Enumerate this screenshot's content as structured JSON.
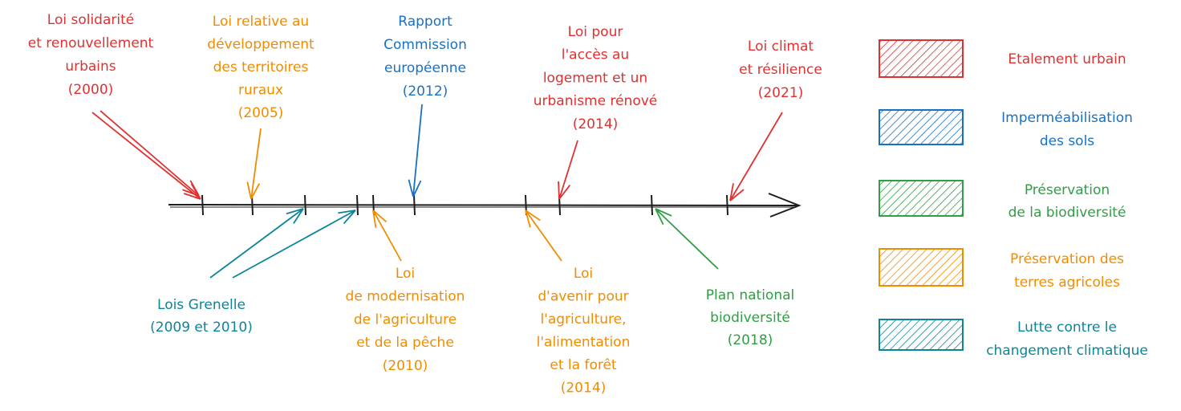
{
  "events": [
    {
      "lines": [
        "Loi solidarité",
        "et renouvellement",
        "urbains",
        "(2000)"
      ],
      "color": "#e03131"
    },
    {
      "lines": [
        "Loi relative au",
        "développement",
        "des territoires",
        "ruraux",
        "(2005)"
      ],
      "color": "#f08c00"
    },
    {
      "lines": [
        "Rapport",
        "Commission",
        "européenne",
        "(2012)"
      ],
      "color": "#1971c2"
    },
    {
      "lines": [
        "Loi pour",
        "l'accès au",
        "logement et un",
        "urbanisme rénové",
        "(2014)"
      ],
      "color": "#e03131"
    },
    {
      "lines": [
        "Loi climat",
        "et résilience",
        "(2021)"
      ],
      "color": "#e03131"
    },
    {
      "lines": [
        "Lois Grenelle",
        "(2009 et 2010)"
      ],
      "color": "#0c8599"
    },
    {
      "lines": [
        "Loi",
        "de modernisation",
        "de l'agriculture",
        "et de la pêche",
        "(2010)"
      ],
      "color": "#f08c00"
    },
    {
      "lines": [
        "Loi",
        "d'avenir pour",
        "l'agriculture,",
        "l'alimentation",
        "et la forêt",
        "(2014)"
      ],
      "color": "#f08c00"
    },
    {
      "lines": [
        "Plan national",
        "biodiversité",
        "(2018)"
      ],
      "color": "#2f9e44"
    }
  ],
  "legend": [
    {
      "lines": [
        "Etalement urbain"
      ],
      "color": "#e03131"
    },
    {
      "lines": [
        "Imperméabilisation",
        "des sols"
      ],
      "color": "#1971c2"
    },
    {
      "lines": [
        "Préservation",
        "de la biodiversité"
      ],
      "color": "#2f9e44"
    },
    {
      "lines": [
        "Préservation des",
        "terres agricoles"
      ],
      "color": "#f08c00"
    },
    {
      "lines": [
        "Lutte contre le",
        "changement climatique"
      ],
      "color": "#0c8599"
    }
  ]
}
